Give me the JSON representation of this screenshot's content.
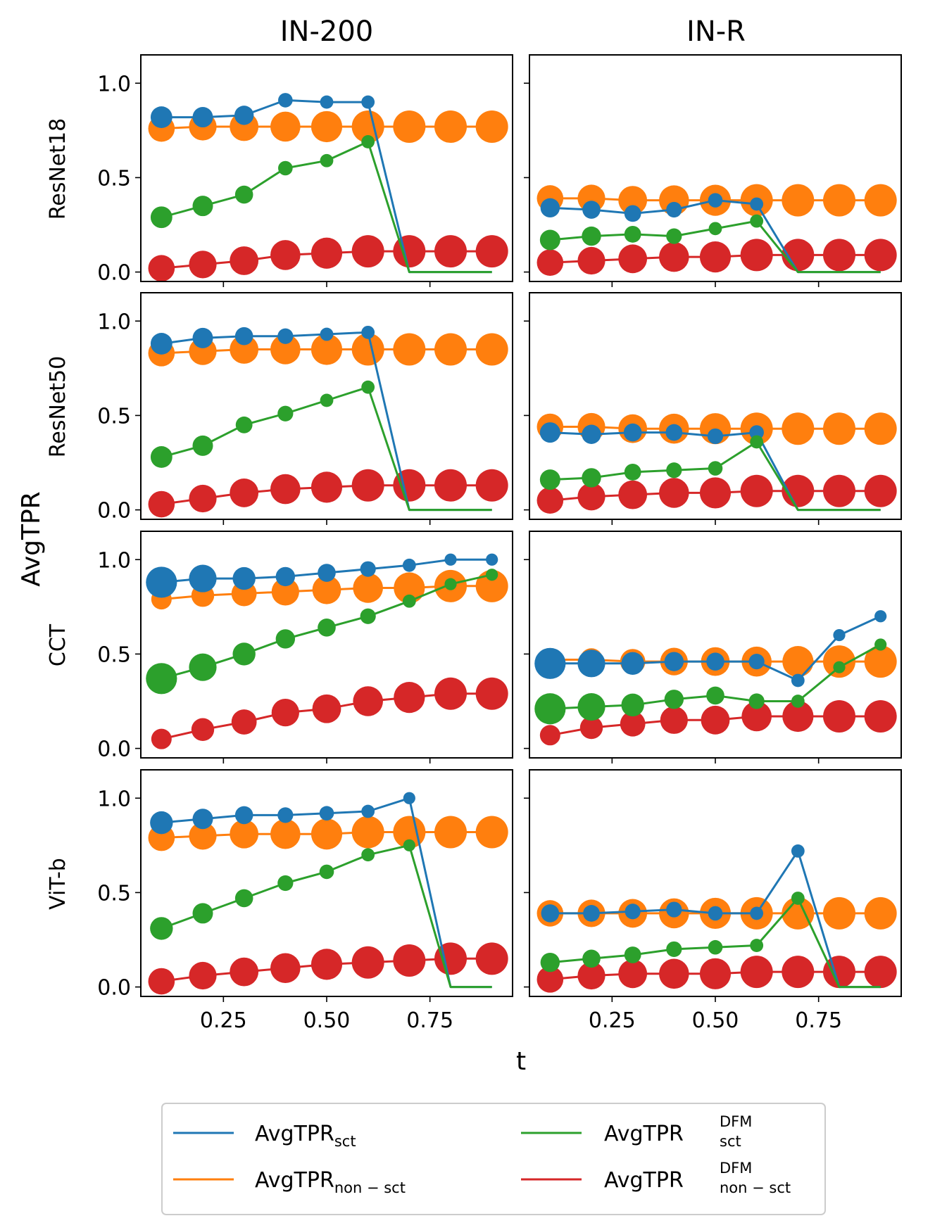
{
  "chart_data": {
    "type": "line",
    "x_label": "t",
    "y_label": "AvgTPR",
    "columns": [
      "IN-200",
      "IN-R"
    ],
    "rows": [
      "ResNet18",
      "ResNet50",
      "CCT",
      "ViT-b"
    ],
    "x": [
      0.1,
      0.2,
      0.3,
      0.4,
      0.5,
      0.6,
      0.7,
      0.8,
      0.9
    ],
    "xlim": [
      0.05,
      0.95
    ],
    "ylim": [
      -0.05,
      1.15
    ],
    "x_ticks": [
      "0.25",
      "0.50",
      "0.75"
    ],
    "y_ticks": [
      "0.0",
      "0.5",
      "1.0"
    ],
    "legend": [
      {
        "key": "sct",
        "base": "AvgTPR",
        "sub": "sct",
        "sup": "",
        "color": "#1f77b4"
      },
      {
        "key": "dfm_sct",
        "base": "AvgTPR",
        "sub": "sct",
        "sup": "DFM",
        "color": "#2ca02c"
      },
      {
        "key": "non_sct",
        "base": "AvgTPR",
        "sub": "non − sct",
        "sup": "",
        "color": "#ff7f0e"
      },
      {
        "key": "dfm_non_sct",
        "base": "AvgTPR",
        "sub": "non − sct",
        "sup": "DFM",
        "color": "#d62728"
      }
    ],
    "panels": [
      {
        "row": "ResNet18",
        "col": "IN-200",
        "series": {
          "sct": {
            "values": [
              0.82,
              0.82,
              0.83,
              0.91,
              0.9,
              0.9,
              0.0,
              0.0,
              0.0
            ],
            "sizes": [
              0.55,
              0.5,
              0.45,
              0.25,
              0.2,
              0.2,
              0,
              0,
              0
            ]
          },
          "non_sct": {
            "values": [
              0.76,
              0.77,
              0.77,
              0.77,
              0.77,
              0.77,
              0.77,
              0.77,
              0.77
            ],
            "sizes": [
              0.75,
              0.8,
              0.85,
              0.9,
              0.95,
              1.0,
              1.0,
              1.0,
              1.0
            ]
          },
          "dfm_sct": {
            "values": [
              0.29,
              0.35,
              0.41,
              0.55,
              0.59,
              0.69,
              0.0,
              0.0,
              0.0
            ],
            "sizes": [
              0.55,
              0.5,
              0.4,
              0.25,
              0.2,
              0.2,
              0,
              0,
              0
            ]
          },
          "dfm_non_sct": {
            "values": [
              0.02,
              0.04,
              0.06,
              0.09,
              0.1,
              0.11,
              0.11,
              0.11,
              0.11
            ],
            "sizes": [
              0.75,
              0.8,
              0.85,
              0.9,
              0.95,
              1.0,
              1.0,
              1.0,
              1.0
            ]
          }
        }
      },
      {
        "row": "ResNet18",
        "col": "IN-R",
        "series": {
          "sct": {
            "values": [
              0.34,
              0.33,
              0.31,
              0.33,
              0.38,
              0.36,
              0.0,
              0.0,
              0.0
            ],
            "sizes": [
              0.45,
              0.4,
              0.35,
              0.3,
              0.25,
              0.2,
              0,
              0,
              0
            ]
          },
          "non_sct": {
            "values": [
              0.39,
              0.39,
              0.38,
              0.38,
              0.38,
              0.38,
              0.38,
              0.38,
              0.38
            ],
            "sizes": [
              0.75,
              0.8,
              0.85,
              0.9,
              0.95,
              1.0,
              1.0,
              1.0,
              1.0
            ]
          },
          "dfm_sct": {
            "values": [
              0.17,
              0.19,
              0.2,
              0.19,
              0.23,
              0.27,
              0.0,
              0.0,
              0.0
            ],
            "sizes": [
              0.5,
              0.45,
              0.35,
              0.3,
              0.2,
              0.2,
              0,
              0,
              0
            ]
          },
          "dfm_non_sct": {
            "values": [
              0.05,
              0.06,
              0.07,
              0.08,
              0.08,
              0.09,
              0.09,
              0.09,
              0.09
            ],
            "sizes": [
              0.75,
              0.8,
              0.85,
              0.9,
              0.95,
              1.0,
              1.0,
              1.0,
              1.0
            ]
          }
        }
      },
      {
        "row": "ResNet50",
        "col": "IN-200",
        "series": {
          "sct": {
            "values": [
              0.88,
              0.91,
              0.92,
              0.92,
              0.93,
              0.94,
              0.0,
              0.0,
              0.0
            ],
            "sizes": [
              0.55,
              0.5,
              0.4,
              0.3,
              0.2,
              0.2,
              0,
              0,
              0
            ]
          },
          "non_sct": {
            "values": [
              0.83,
              0.84,
              0.85,
              0.85,
              0.85,
              0.85,
              0.85,
              0.85,
              0.85
            ],
            "sizes": [
              0.75,
              0.8,
              0.85,
              0.9,
              0.95,
              1.0,
              1.0,
              1.0,
              1.0
            ]
          },
          "dfm_sct": {
            "values": [
              0.28,
              0.34,
              0.45,
              0.51,
              0.58,
              0.65,
              0.0,
              0.0,
              0.0
            ],
            "sizes": [
              0.55,
              0.5,
              0.35,
              0.3,
              0.2,
              0.2,
              0,
              0,
              0
            ]
          },
          "dfm_non_sct": {
            "values": [
              0.03,
              0.06,
              0.09,
              0.11,
              0.12,
              0.13,
              0.13,
              0.13,
              0.13
            ],
            "sizes": [
              0.75,
              0.8,
              0.85,
              0.9,
              0.95,
              1.0,
              1.0,
              1.0,
              1.0
            ]
          }
        }
      },
      {
        "row": "ResNet50",
        "col": "IN-R",
        "series": {
          "sct": {
            "values": [
              0.41,
              0.4,
              0.41,
              0.41,
              0.39,
              0.41,
              0.0,
              0.0,
              0.0
            ],
            "sizes": [
              0.5,
              0.45,
              0.4,
              0.35,
              0.3,
              0.25,
              0,
              0,
              0
            ]
          },
          "non_sct": {
            "values": [
              0.44,
              0.44,
              0.43,
              0.43,
              0.43,
              0.43,
              0.43,
              0.43,
              0.43
            ],
            "sizes": [
              0.75,
              0.8,
              0.85,
              0.9,
              0.95,
              1.0,
              1.0,
              1.0,
              1.0
            ]
          },
          "dfm_sct": {
            "values": [
              0.16,
              0.17,
              0.2,
              0.21,
              0.22,
              0.36,
              0.0,
              0.0,
              0.0
            ],
            "sizes": [
              0.5,
              0.45,
              0.35,
              0.3,
              0.25,
              0.2,
              0,
              0,
              0
            ]
          },
          "dfm_non_sct": {
            "values": [
              0.05,
              0.07,
              0.08,
              0.09,
              0.09,
              0.1,
              0.1,
              0.1,
              0.1
            ],
            "sizes": [
              0.75,
              0.8,
              0.85,
              0.9,
              0.95,
              1.0,
              1.0,
              1.0,
              1.0
            ]
          }
        }
      },
      {
        "row": "CCT",
        "col": "IN-200",
        "series": {
          "sct": {
            "values": [
              0.88,
              0.9,
              0.9,
              0.91,
              0.93,
              0.95,
              0.97,
              1.0,
              1.0
            ],
            "sizes": [
              0.95,
              0.8,
              0.6,
              0.45,
              0.4,
              0.3,
              0.2,
              0.15,
              0.15
            ]
          },
          "non_sct": {
            "values": [
              0.79,
              0.81,
              0.82,
              0.83,
              0.84,
              0.85,
              0.85,
              0.86,
              0.86
            ],
            "sizes": [
              0.5,
              0.6,
              0.7,
              0.8,
              0.85,
              0.9,
              0.95,
              1.0,
              1.0
            ]
          },
          "dfm_sct": {
            "values": [
              0.37,
              0.43,
              0.5,
              0.58,
              0.64,
              0.7,
              0.78,
              0.87,
              0.92
            ],
            "sizes": [
              0.95,
              0.8,
              0.6,
              0.45,
              0.4,
              0.3,
              0.2,
              0.15,
              0.15
            ]
          },
          "dfm_non_sct": {
            "values": [
              0.05,
              0.1,
              0.14,
              0.19,
              0.21,
              0.25,
              0.27,
              0.29,
              0.29
            ],
            "sizes": [
              0.5,
              0.6,
              0.7,
              0.8,
              0.85,
              0.9,
              0.95,
              1.0,
              1.0
            ]
          }
        }
      },
      {
        "row": "CCT",
        "col": "IN-R",
        "series": {
          "sct": {
            "values": [
              0.45,
              0.45,
              0.45,
              0.46,
              0.46,
              0.46,
              0.36,
              0.6,
              0.7
            ],
            "sizes": [
              0.95,
              0.8,
              0.6,
              0.45,
              0.4,
              0.3,
              0.2,
              0.15,
              0.15
            ]
          },
          "non_sct": {
            "values": [
              0.47,
              0.47,
              0.46,
              0.46,
              0.46,
              0.46,
              0.46,
              0.46,
              0.46
            ],
            "sizes": [
              0.5,
              0.6,
              0.7,
              0.8,
              0.85,
              0.9,
              0.95,
              1.0,
              1.0
            ]
          },
          "dfm_sct": {
            "values": [
              0.21,
              0.22,
              0.23,
              0.26,
              0.28,
              0.25,
              0.25,
              0.43,
              0.55
            ],
            "sizes": [
              0.95,
              0.8,
              0.6,
              0.45,
              0.4,
              0.3,
              0.2,
              0.15,
              0.15
            ]
          },
          "dfm_non_sct": {
            "values": [
              0.07,
              0.11,
              0.13,
              0.15,
              0.15,
              0.17,
              0.17,
              0.17,
              0.17
            ],
            "sizes": [
              0.5,
              0.6,
              0.7,
              0.8,
              0.85,
              0.9,
              0.95,
              1.0,
              1.0
            ]
          }
        }
      },
      {
        "row": "ViT-b",
        "col": "IN-200",
        "series": {
          "sct": {
            "values": [
              0.87,
              0.89,
              0.91,
              0.91,
              0.92,
              0.93,
              1.0,
              0.0,
              0.0
            ],
            "sizes": [
              0.6,
              0.5,
              0.4,
              0.3,
              0.25,
              0.2,
              0.15,
              0,
              0
            ]
          },
          "non_sct": {
            "values": [
              0.79,
              0.8,
              0.81,
              0.81,
              0.81,
              0.82,
              0.82,
              0.82,
              0.82
            ],
            "sizes": [
              0.75,
              0.8,
              0.85,
              0.9,
              0.95,
              1.0,
              1.0,
              1.0,
              1.0
            ]
          },
          "dfm_sct": {
            "values": [
              0.31,
              0.39,
              0.47,
              0.55,
              0.61,
              0.7,
              0.75,
              0.0,
              0.0
            ],
            "sizes": [
              0.6,
              0.5,
              0.4,
              0.3,
              0.25,
              0.2,
              0.15,
              0,
              0
            ]
          },
          "dfm_non_sct": {
            "values": [
              0.03,
              0.06,
              0.08,
              0.1,
              0.12,
              0.13,
              0.14,
              0.15,
              0.15
            ],
            "sizes": [
              0.75,
              0.8,
              0.85,
              0.9,
              0.95,
              1.0,
              1.0,
              1.0,
              1.0
            ]
          }
        }
      },
      {
        "row": "ViT-b",
        "col": "IN-R",
        "series": {
          "sct": {
            "values": [
              0.39,
              0.39,
              0.4,
              0.41,
              0.39,
              0.39,
              0.72,
              0.0,
              0.0
            ],
            "sizes": [
              0.4,
              0.35,
              0.3,
              0.3,
              0.25,
              0.2,
              0.2,
              0,
              0
            ]
          },
          "non_sct": {
            "values": [
              0.39,
              0.39,
              0.39,
              0.39,
              0.39,
              0.39,
              0.39,
              0.39,
              0.39
            ],
            "sizes": [
              0.75,
              0.8,
              0.85,
              0.9,
              0.95,
              1.0,
              1.0,
              1.0,
              1.0
            ]
          },
          "dfm_sct": {
            "values": [
              0.13,
              0.15,
              0.17,
              0.2,
              0.21,
              0.22,
              0.47,
              0.0,
              0.0
            ],
            "sizes": [
              0.45,
              0.4,
              0.35,
              0.3,
              0.25,
              0.2,
              0.2,
              0,
              0
            ]
          },
          "dfm_non_sct": {
            "values": [
              0.04,
              0.06,
              0.07,
              0.07,
              0.07,
              0.08,
              0.08,
              0.08,
              0.08
            ],
            "sizes": [
              0.75,
              0.8,
              0.85,
              0.9,
              0.95,
              1.0,
              1.0,
              1.0,
              1.0
            ]
          }
        }
      }
    ]
  }
}
